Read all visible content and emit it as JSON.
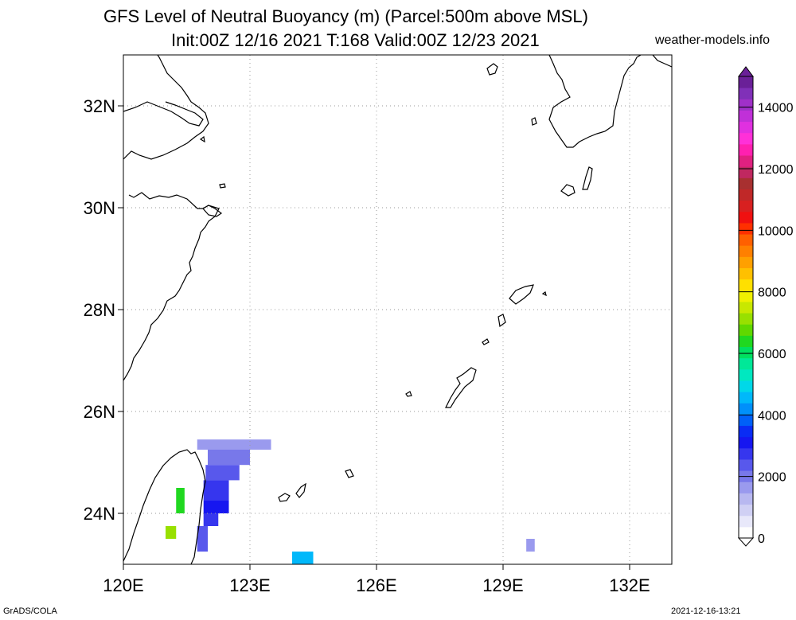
{
  "header": {
    "title_line1": "GFS Level of Neutral Buoyancy (m) (Parcel:500m above MSL)",
    "title_line2": "Init:00Z 12/16 2021 T:168 Valid:00Z 12/23 2021",
    "site": "weather-models.info"
  },
  "footer": {
    "left": "GrADS/COLA",
    "right": "2021-12-16-13:21"
  },
  "map": {
    "lon_range": [
      120,
      133
    ],
    "lat_range": [
      23,
      33
    ],
    "x_ticks": [
      {
        "lon": 120,
        "label": "120E"
      },
      {
        "lon": 123,
        "label": "123E"
      },
      {
        "lon": 126,
        "label": "126E"
      },
      {
        "lon": 129,
        "label": "129E"
      },
      {
        "lon": 132,
        "label": "132E"
      }
    ],
    "y_ticks": [
      {
        "lat": 24,
        "label": "24N"
      },
      {
        "lat": 26,
        "label": "26N"
      },
      {
        "lat": 28,
        "label": "28N"
      },
      {
        "lat": 30,
        "label": "30N"
      },
      {
        "lat": 32,
        "label": "32N"
      }
    ],
    "grid": "dotted",
    "coastline_color": "#000000"
  },
  "colorbar": {
    "labels": [
      {
        "value": 0,
        "label": "0"
      },
      {
        "value": 2000,
        "label": "2000"
      },
      {
        "value": 4000,
        "label": "4000"
      },
      {
        "value": 6000,
        "label": "6000"
      },
      {
        "value": 8000,
        "label": "8000"
      },
      {
        "value": 10000,
        "label": "10000"
      },
      {
        "value": 12000,
        "label": "12000"
      },
      {
        "value": 14000,
        "label": "14000"
      }
    ],
    "colors": [
      "#fefefe",
      "#e8e8fa",
      "#d0d0f4",
      "#b8b8f0",
      "#9a9aee",
      "#7878ea",
      "#5858ec",
      "#3636ee",
      "#1616f0",
      "#0a2cf4",
      "#0060f8",
      "#0090fa",
      "#00b8fa",
      "#00d8e8",
      "#00e8c0",
      "#00e898",
      "#00e060",
      "#20d820",
      "#60d800",
      "#98e000",
      "#c8e800",
      "#f0f000",
      "#ffe000",
      "#ffc000",
      "#ffa000",
      "#ff8000",
      "#ff6000",
      "#ff3000",
      "#f01010",
      "#d82020",
      "#c02828",
      "#a83030",
      "#c02860",
      "#e02080",
      "#ff20b0",
      "#ff30d8",
      "#e030e0",
      "#c030d8",
      "#a030c8",
      "#8030b8",
      "#6a2098"
    ],
    "max": 15000
  },
  "data_cells": [
    {
      "lon0": 121.75,
      "lon1": 123.5,
      "lat0": 25.25,
      "lat1": 25.45,
      "value": 1600
    },
    {
      "lon0": 122.0,
      "lon1": 123.0,
      "lat0": 24.95,
      "lat1": 25.25,
      "value": 2000
    },
    {
      "lon0": 121.95,
      "lon1": 122.75,
      "lat0": 24.65,
      "lat1": 24.95,
      "value": 2400
    },
    {
      "lon0": 121.9,
      "lon1": 122.5,
      "lat0": 24.25,
      "lat1": 24.65,
      "value": 2800
    },
    {
      "lon0": 121.9,
      "lon1": 122.5,
      "lat0": 24.0,
      "lat1": 24.25,
      "value": 3200
    },
    {
      "lon0": 121.9,
      "lon1": 122.25,
      "lat0": 23.75,
      "lat1": 24.0,
      "value": 2600
    },
    {
      "lon0": 121.75,
      "lon1": 122.0,
      "lat0": 23.25,
      "lat1": 23.75,
      "value": 2200
    },
    {
      "lon0": 121.25,
      "lon1": 121.45,
      "lat0": 24.0,
      "lat1": 24.5,
      "value": 6500
    },
    {
      "lon0": 121.0,
      "lon1": 121.25,
      "lat0": 23.5,
      "lat1": 23.75,
      "value": 7000
    },
    {
      "lon0": 124.0,
      "lon1": 124.5,
      "lat0": 23.0,
      "lat1": 23.25,
      "value": 4500
    },
    {
      "lon0": 129.55,
      "lon1": 129.75,
      "lat0": 23.25,
      "lat1": 23.5,
      "value": 1500
    }
  ]
}
